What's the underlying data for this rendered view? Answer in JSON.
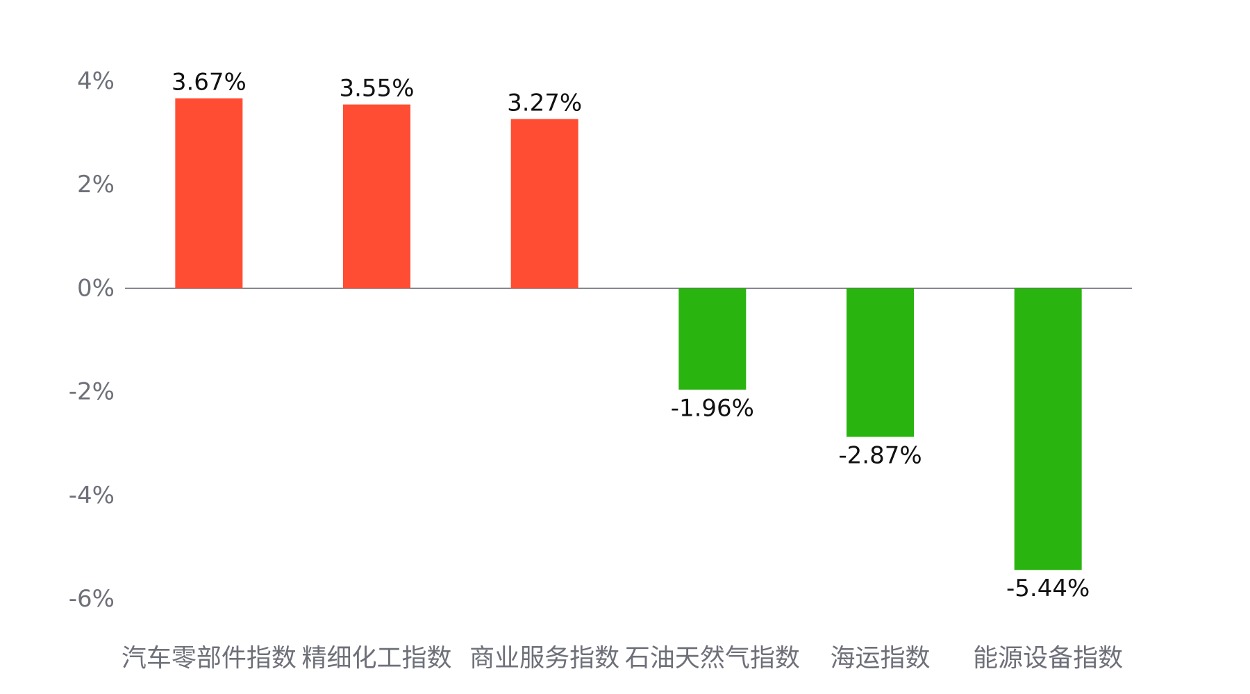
{
  "chart_data": {
    "type": "bar",
    "categories": [
      "汽车零部件指数",
      "精细化工指数",
      "商业服务指数",
      "石油天然气指数",
      "海运指数",
      "能源设备指数"
    ],
    "values": [
      3.67,
      3.55,
      3.27,
      -1.96,
      -2.87,
      -5.44
    ],
    "value_labels": [
      "3.67%",
      "3.55%",
      "3.27%",
      "-1.96%",
      "-2.87%",
      "-5.44%"
    ],
    "y_ticks": [
      4,
      2,
      0,
      -2,
      -4,
      -6
    ],
    "y_tick_labels": [
      "4%",
      "2%",
      "0%",
      "-2%",
      "-4%",
      "-6%"
    ],
    "ylim": [
      -6,
      4
    ],
    "grid": false,
    "legend": "none",
    "colors": {
      "positive": "#ff4d33",
      "negative": "#2ab40f",
      "axis": "#6e7079"
    }
  }
}
